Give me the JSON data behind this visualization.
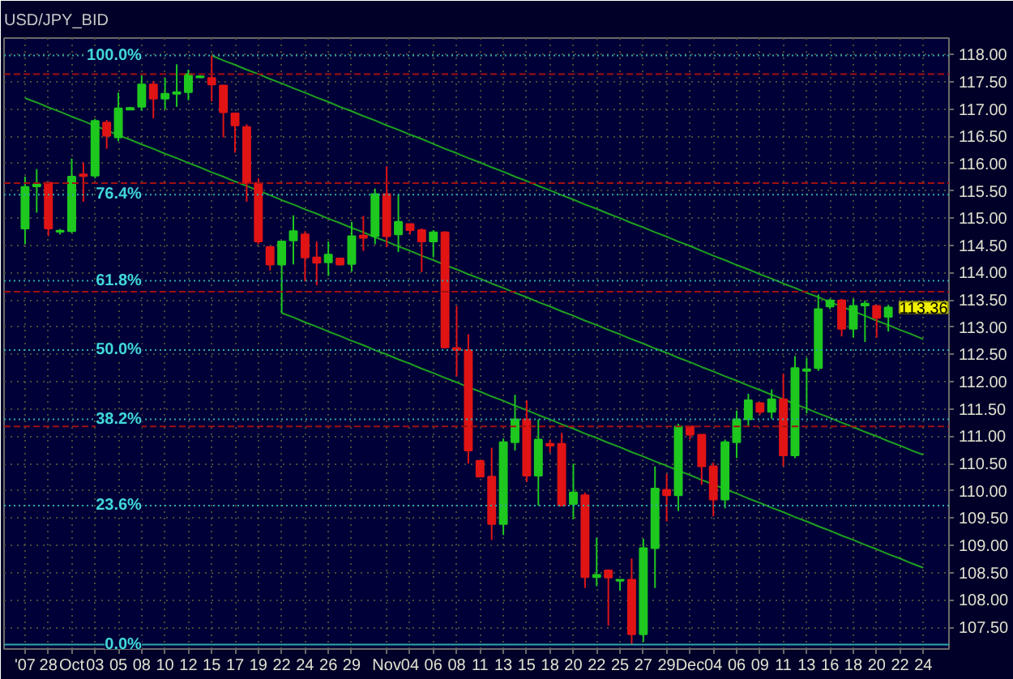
{
  "chart_data": {
    "type": "candlestick",
    "title": "USD/JPY_BID",
    "categories": [
      "'07",
      null,
      "28",
      null,
      "Oct",
      null,
      "03",
      null,
      "05",
      null,
      "08",
      null,
      "10",
      null,
      "12",
      null,
      "15",
      null,
      "17",
      null,
      "19",
      null,
      "22",
      null,
      "24",
      null,
      "26",
      null,
      "29",
      null,
      null,
      "Nov",
      null,
      "04",
      null,
      "06",
      null,
      "08",
      null,
      "11",
      null,
      "13",
      null,
      "15",
      null,
      "18",
      null,
      "20",
      null,
      "22",
      null,
      "25",
      null,
      "27",
      null,
      "29",
      null,
      "Dec",
      null,
      "04",
      null,
      "06",
      null,
      "09",
      null,
      "11",
      null,
      "13",
      null,
      "16",
      null,
      "18",
      null,
      "20",
      null,
      "22",
      null,
      "24"
    ],
    "ohlc": [
      [
        114.81,
        115.76,
        114.52,
        115.57
      ],
      [
        115.58,
        115.9,
        115.1,
        115.62
      ],
      [
        115.65,
        115.65,
        114.67,
        114.81
      ],
      [
        114.75,
        114.8,
        114.7,
        114.77
      ],
      [
        114.76,
        116.09,
        114.73,
        115.76
      ],
      [
        115.8,
        116.02,
        115.3,
        115.77
      ],
      [
        115.78,
        116.82,
        115.73,
        116.78
      ],
      [
        116.75,
        116.8,
        116.27,
        116.51
      ],
      [
        116.48,
        117.3,
        116.41,
        117.01
      ],
      [
        116.99,
        117.04,
        116.98,
        117.02
      ],
      [
        117.04,
        117.62,
        116.97,
        117.45
      ],
      [
        117.45,
        117.51,
        116.83,
        117.19
      ],
      [
        117.19,
        117.57,
        116.99,
        117.28
      ],
      [
        117.28,
        117.82,
        117.04,
        117.31
      ],
      [
        117.31,
        117.72,
        117.16,
        117.64
      ],
      [
        117.58,
        117.62,
        117.57,
        117.6
      ],
      [
        117.57,
        117.98,
        117.14,
        117.45
      ],
      [
        117.43,
        117.43,
        116.48,
        116.94
      ],
      [
        116.92,
        116.92,
        116.2,
        116.7
      ],
      [
        116.67,
        116.72,
        115.3,
        115.64
      ],
      [
        115.64,
        115.73,
        114.52,
        114.57
      ],
      [
        114.47,
        114.47,
        114.04,
        114.15
      ],
      [
        114.15,
        114.57,
        113.26,
        114.57
      ],
      [
        114.59,
        115.05,
        114.15,
        114.76
      ],
      [
        114.7,
        114.76,
        113.84,
        114.28
      ],
      [
        114.28,
        114.57,
        113.77,
        114.18
      ],
      [
        114.19,
        114.57,
        113.94,
        114.33
      ],
      [
        114.26,
        114.27,
        114.13,
        114.15
      ],
      [
        114.16,
        114.93,
        114.02,
        114.67
      ],
      [
        114.68,
        115.04,
        114.4,
        114.64
      ],
      [
        114.67,
        115.54,
        114.52,
        115.44
      ],
      [
        115.44,
        115.95,
        114.47,
        114.67
      ],
      [
        114.7,
        115.44,
        114.38,
        114.93
      ],
      [
        114.89,
        114.89,
        114.7,
        114.78
      ],
      [
        114.78,
        114.81,
        114.01,
        114.57
      ],
      [
        114.57,
        114.78,
        114.28,
        114.74
      ],
      [
        114.74,
        114.76,
        112.61,
        112.63
      ],
      [
        112.62,
        113.39,
        112.1,
        112.58
      ],
      [
        112.58,
        112.87,
        110.5,
        110.74
      ],
      [
        110.55,
        110.56,
        110.25,
        110.26
      ],
      [
        110.26,
        110.79,
        109.1,
        109.39
      ],
      [
        109.39,
        110.96,
        109.19,
        110.89
      ],
      [
        110.89,
        111.76,
        110.74,
        111.31
      ],
      [
        111.31,
        111.66,
        110.16,
        110.28
      ],
      [
        110.28,
        111.31,
        109.73,
        110.94
      ],
      [
        110.86,
        110.94,
        110.7,
        110.83
      ],
      [
        110.86,
        111.06,
        109.73,
        109.73
      ],
      [
        109.76,
        110.5,
        109.48,
        109.97
      ],
      [
        109.92,
        109.97,
        108.22,
        108.42
      ],
      [
        108.42,
        109.14,
        108.25,
        108.46
      ],
      [
        108.54,
        108.56,
        107.53,
        108.41
      ],
      [
        108.35,
        108.37,
        108.17,
        108.37
      ],
      [
        108.37,
        108.76,
        107.18,
        107.37
      ],
      [
        107.37,
        109.12,
        107.23,
        108.95
      ],
      [
        108.95,
        110.45,
        108.22,
        110.04
      ],
      [
        110.02,
        110.31,
        109.44,
        109.92
      ],
      [
        109.92,
        111.23,
        109.63,
        111.18
      ],
      [
        111.18,
        111.18,
        110.94,
        111.03
      ],
      [
        111.03,
        111.03,
        110.11,
        110.45
      ],
      [
        110.45,
        110.52,
        109.53,
        109.84
      ],
      [
        109.84,
        110.94,
        109.68,
        110.89
      ],
      [
        110.89,
        111.47,
        110.6,
        111.31
      ],
      [
        111.31,
        111.78,
        111.18,
        111.66
      ],
      [
        111.61,
        111.61,
        111.4,
        111.45
      ],
      [
        111.45,
        111.86,
        111.32,
        111.68
      ],
      [
        111.68,
        112.15,
        110.45,
        110.65
      ],
      [
        110.65,
        112.47,
        110.6,
        112.25
      ],
      [
        112.2,
        112.44,
        111.42,
        112.23
      ],
      [
        112.25,
        113.6,
        112.2,
        113.33
      ],
      [
        113.38,
        113.52,
        113.33,
        113.49
      ],
      [
        113.49,
        113.52,
        112.83,
        112.97
      ],
      [
        112.97,
        113.52,
        112.81,
        113.39
      ],
      [
        113.4,
        113.49,
        112.73,
        113.43
      ],
      [
        113.39,
        113.39,
        112.81,
        113.17
      ],
      [
        113.19,
        113.41,
        112.92,
        113.36
      ],
      null,
      null,
      null
    ],
    "colors": [
      "#1ec81e",
      "#1ec81e",
      "#e01414",
      "#1ec81e",
      "#1ec81e",
      "#e01414",
      "#1ec81e",
      "#e01414",
      "#1ec81e",
      "#1ec81e",
      "#1ec81e",
      "#e01414",
      "#1ec81e",
      "#1ec81e",
      "#1ec81e",
      "#1ec81e",
      "#e01414",
      "#e01414",
      "#e01414",
      "#e01414",
      "#e01414",
      "#e01414",
      "#1ec81e",
      "#1ec81e",
      "#e01414",
      "#e01414",
      "#1ec81e",
      "#e01414",
      "#1ec81e",
      "#e01414",
      "#1ec81e",
      "#e01414",
      "#1ec81e",
      "#e01414",
      "#e01414",
      "#1ec81e",
      "#e01414",
      "#e01414",
      "#e01414",
      "#e01414",
      "#e01414",
      "#1ec81e",
      "#1ec81e",
      "#e01414",
      "#1ec81e",
      "#e01414",
      "#e01414",
      "#1ec81e",
      "#e01414",
      "#1ec81e",
      "#e01414",
      "#1ec81e",
      "#e01414",
      "#1ec81e",
      "#1ec81e",
      "#e01414",
      "#1ec81e",
      "#e01414",
      "#e01414",
      "#e01414",
      "#1ec81e",
      "#1ec81e",
      "#1ec81e",
      "#e01414",
      "#1ec81e",
      "#e01414",
      "#1ec81e",
      "#1ec81e",
      "#1ec81e",
      "#1ec81e",
      "#e01414",
      "#1ec81e",
      "#1ec81e",
      "#e01414",
      "#1ec81e",
      null,
      null,
      null
    ],
    "series": [
      {
        "type": "line",
        "color": "#1fa01f",
        "values": [
          null,
          null,
          null,
          null,
          null,
          null,
          null,
          null,
          null,
          null,
          null,
          null,
          null,
          null,
          null,
          null,
          117.98,
          117.89,
          117.81,
          117.72,
          117.64,
          117.55,
          117.47,
          117.38,
          117.3,
          117.21,
          117.13,
          117.04,
          116.96,
          116.87,
          116.79,
          116.7,
          116.62,
          116.53,
          116.45,
          116.36,
          116.27,
          116.19,
          116.1,
          116.02,
          115.93,
          115.85,
          115.76,
          115.68,
          115.59,
          115.51,
          115.42,
          115.34,
          115.25,
          115.17,
          115.08,
          115.0,
          114.91,
          114.83,
          114.74,
          114.66,
          114.57,
          114.49,
          114.4,
          114.31,
          114.23,
          114.14,
          114.06,
          113.97,
          113.89,
          113.8,
          113.72,
          113.63,
          113.55,
          113.46,
          113.38,
          113.29,
          113.21,
          113.12,
          113.04,
          112.95,
          112.87,
          112.78
        ]
      },
      {
        "type": "line",
        "color": "#1fa01f",
        "values": [
          117.2,
          117.12,
          117.03,
          116.95,
          116.86,
          116.78,
          116.69,
          116.61,
          116.52,
          116.44,
          116.35,
          116.27,
          116.18,
          116.1,
          116.01,
          115.93,
          115.84,
          115.76,
          115.67,
          115.59,
          115.5,
          115.42,
          115.33,
          115.25,
          115.16,
          115.08,
          114.99,
          114.91,
          114.82,
          114.74,
          114.65,
          114.57,
          114.48,
          114.4,
          114.31,
          114.23,
          114.14,
          114.06,
          113.97,
          113.89,
          113.8,
          113.72,
          113.63,
          113.55,
          113.46,
          113.38,
          113.29,
          113.21,
          113.12,
          113.04,
          112.95,
          112.87,
          112.78,
          112.7,
          112.61,
          112.53,
          112.44,
          112.36,
          112.27,
          112.19,
          112.1,
          112.02,
          111.93,
          111.85,
          111.76,
          111.68,
          111.59,
          111.51,
          111.42,
          111.34,
          111.25,
          111.17,
          111.08,
          111.0,
          110.91,
          110.83,
          110.74,
          110.66
        ]
      },
      {
        "type": "line",
        "color": "#1fa01f",
        "values": [
          null,
          null,
          null,
          null,
          null,
          null,
          null,
          null,
          null,
          null,
          null,
          null,
          null,
          null,
          null,
          null,
          null,
          null,
          null,
          null,
          null,
          null,
          113.26,
          113.18,
          113.09,
          113.01,
          112.92,
          112.84,
          112.75,
          112.67,
          112.58,
          112.5,
          112.41,
          112.33,
          112.24,
          112.16,
          112.07,
          111.99,
          111.9,
          111.82,
          111.73,
          111.65,
          111.56,
          111.48,
          111.39,
          111.31,
          111.22,
          111.14,
          111.05,
          110.97,
          110.88,
          110.8,
          110.71,
          110.63,
          110.54,
          110.46,
          110.37,
          110.29,
          110.2,
          110.12,
          110.03,
          109.95,
          109.86,
          109.78,
          109.69,
          109.61,
          109.52,
          109.44,
          109.35,
          109.27,
          109.18,
          109.1,
          109.01,
          108.93,
          108.84,
          108.76,
          108.67,
          108.59
        ]
      }
    ],
    "ylim": [
      107.1,
      118.3
    ],
    "yticks": [
      {
        "value": 107.5,
        "label": "107.50"
      },
      {
        "value": 108,
        "label": "108.00"
      },
      {
        "value": 108.5,
        "label": "108.50"
      },
      {
        "value": 109,
        "label": "109.00"
      },
      {
        "value": 109.5,
        "label": "109.50"
      },
      {
        "value": 110,
        "label": "110.00"
      },
      {
        "value": 110.5,
        "label": "110.50"
      },
      {
        "value": 111,
        "label": "111.00"
      },
      {
        "value": 111.5,
        "label": "111.50"
      },
      {
        "value": 112,
        "label": "112.00"
      },
      {
        "value": 112.5,
        "label": "112.50"
      },
      {
        "value": 113,
        "label": "113.00"
      },
      {
        "value": 113.5,
        "label": "113.50"
      },
      {
        "value": 114,
        "label": "114.00"
      },
      {
        "value": 114.5,
        "label": "114.50"
      },
      {
        "value": 115,
        "label": "115.00"
      },
      {
        "value": 115.5,
        "label": "115.50"
      },
      {
        "value": 116,
        "label": "116.00"
      },
      {
        "value": 116.5,
        "label": "116.50"
      },
      {
        "value": 117,
        "label": "117.00"
      },
      {
        "value": 117.5,
        "label": "117.50"
      },
      {
        "value": 118,
        "label": "118.00"
      }
    ],
    "ref_lines": [
      {
        "axis": "y",
        "value": 117.98,
        "color": "#2fa8a8",
        "line_style": "dotted"
      },
      {
        "axis": "y",
        "value": 115.43,
        "color": "#2fa8a8",
        "line_style": "dotted"
      },
      {
        "axis": "y",
        "value": 113.85,
        "color": "#2fa8a8",
        "line_style": "dotted"
      },
      {
        "axis": "y",
        "value": 112.58,
        "color": "#2fa8a8",
        "line_style": "dotted"
      },
      {
        "axis": "y",
        "value": 111.31,
        "color": "#2fa8a8",
        "line_style": "dotted"
      },
      {
        "axis": "y",
        "value": 109.73,
        "color": "#2fa8a8",
        "line_style": "dotted"
      },
      {
        "axis": "y",
        "value": 107.18,
        "color": "#2fa8a8",
        "line_style": "solid"
      },
      {
        "axis": "y",
        "value": 117.64,
        "color": "#a01010",
        "line_style": "dashed"
      },
      {
        "axis": "y",
        "value": 115.64,
        "color": "#a01010",
        "line_style": "dashed"
      },
      {
        "axis": "y",
        "value": 113.65,
        "color": "#a01010",
        "line_style": "dashed"
      },
      {
        "axis": "y",
        "value": 111.18,
        "color": "#a01010",
        "line_style": "dashed"
      }
    ],
    "annotations": [
      {
        "text": "100.0%",
        "y": 117.98
      },
      {
        "text": "76.4%",
        "y": 115.43
      },
      {
        "text": "61.8%",
        "y": 113.85
      },
      {
        "text": "50.0%",
        "y": 112.58
      },
      {
        "text": "38.2%",
        "y": 111.31
      },
      {
        "text": "23.6%",
        "y": 109.73
      },
      {
        "text": "0.0%",
        "y": 107.18
      },
      "113.36"
    ],
    "grid": true
  }
}
